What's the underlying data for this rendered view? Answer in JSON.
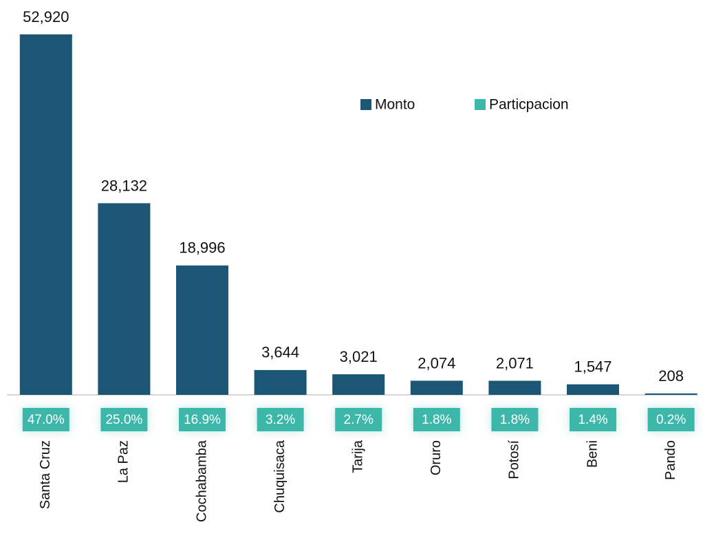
{
  "chart_data": {
    "type": "bar",
    "categories": [
      "Santa Cruz",
      "La Paz",
      "Cochabamba",
      "Chuquisaca",
      "Tarija",
      "Oruro",
      "Potosí",
      "Beni",
      "Pando"
    ],
    "series": [
      {
        "name": "Monto",
        "color": "#1b5674",
        "values": [
          52920,
          28132,
          18996,
          3644,
          3021,
          2074,
          2071,
          1547,
          208
        ],
        "value_labels": [
          "52,920",
          "28,132",
          "18,996",
          "3,644",
          "3,021",
          "2,074",
          "2,071",
          "1,547",
          "208"
        ]
      },
      {
        "name": "Particpacion",
        "color": "#3db7a9",
        "values": [
          47.0,
          25.0,
          16.9,
          3.2,
          2.7,
          1.8,
          1.8,
          1.4,
          0.2
        ],
        "value_labels": [
          "47.0%",
          "25.0%",
          "16.9%",
          "3.2%",
          "2.7%",
          "1.8%",
          "1.8%",
          "1.4%",
          "0.2%"
        ]
      }
    ],
    "legend": "top-right"
  }
}
